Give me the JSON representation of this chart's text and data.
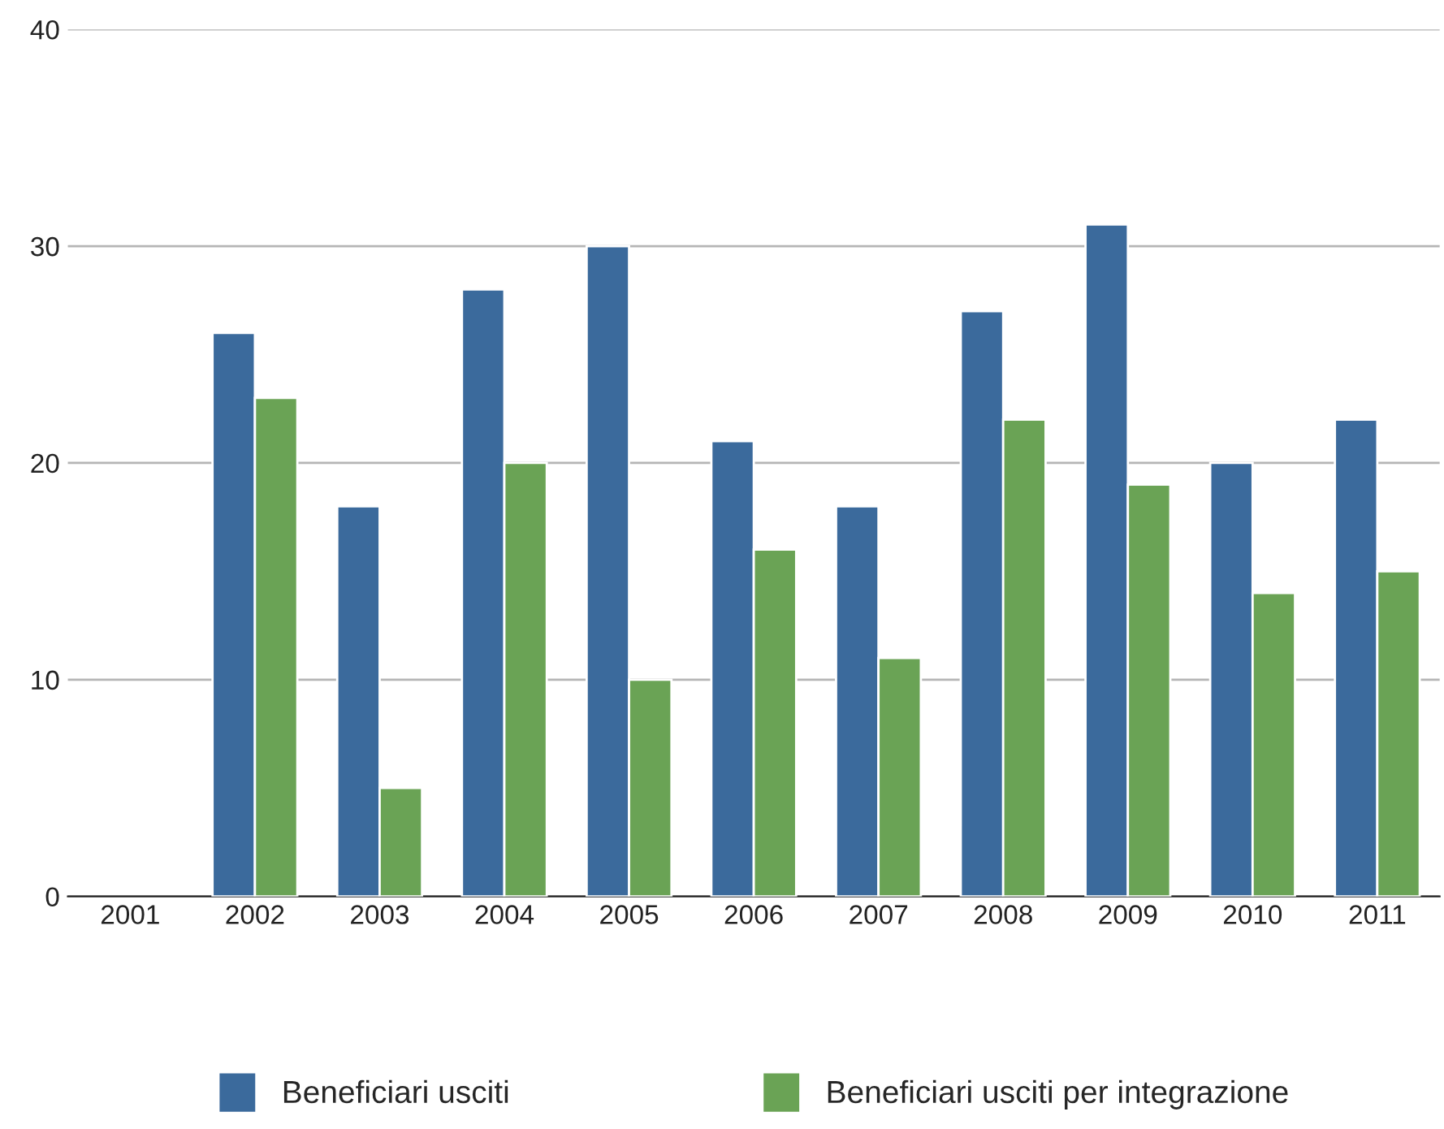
{
  "chart_data": {
    "type": "bar",
    "categories": [
      "2001",
      "2002",
      "2003",
      "2004",
      "2005",
      "2006",
      "2007",
      "2008",
      "2009",
      "2010",
      "2011"
    ],
    "series": [
      {
        "name": "Beneficiari usciti",
        "color": "#3b6a9c",
        "values": [
          null,
          26,
          18,
          28,
          30,
          21,
          18,
          27,
          31,
          20,
          22
        ]
      },
      {
        "name": "Beneficiari usciti per integrazione",
        "color": "#6aa355",
        "values": [
          null,
          23,
          5,
          20,
          10,
          16,
          11,
          22,
          19,
          14,
          15
        ]
      }
    ],
    "ylim": [
      0,
      40
    ],
    "yticks": [
      0,
      10,
      20,
      30,
      40
    ],
    "grid": "y",
    "legend": "bottom"
  }
}
